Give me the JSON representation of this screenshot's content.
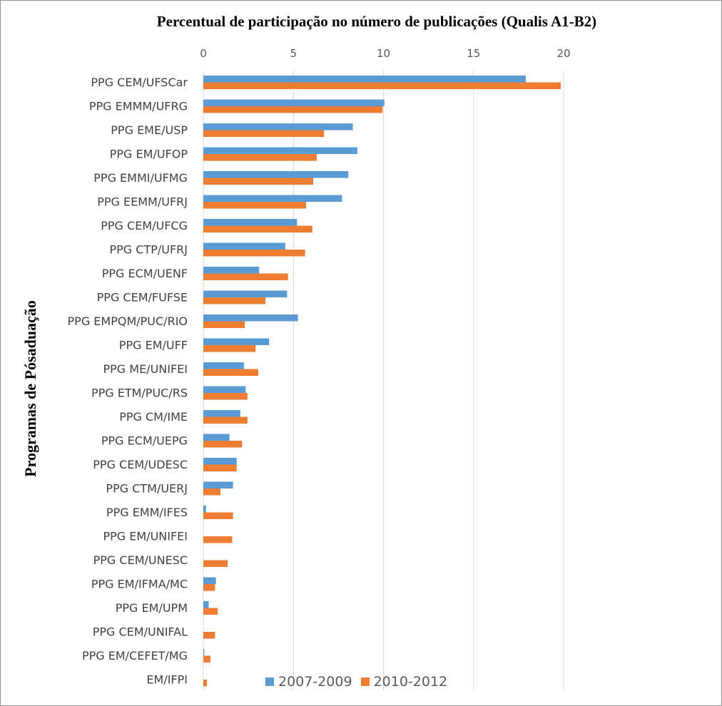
{
  "chart_data": {
    "type": "bar",
    "orientation": "horizontal",
    "title": "Percentual de participação no número de publicações (Qualis A1-B2)",
    "ylabel": "Programas de Pósaduação",
    "xlabel": "",
    "xlim": [
      0,
      20
    ],
    "xticks": [
      "0",
      "5",
      "10",
      "15",
      "20"
    ],
    "grid": true,
    "legend_position": "bottom",
    "categories": [
      "PPG CEM/UFSCar",
      "PPG EMMM/UFRG",
      "PPG EME/USP",
      "PPG EM/UFOP",
      "PPG EMMI/UFMG",
      "PPG EEMM/UFRJ",
      "PPG CEM/UFCG",
      "PPG CTP/UFRJ",
      "PPG ECM/UENF",
      "PPG CEM/FUFSE",
      "PPG EMPQM/PUC/RIO",
      "PPG EM/UFF",
      "PPG ME/UNIFEI",
      "PPG ETM/PUC/RS",
      "PPG CM/IME",
      "PPG ECM/UEPG",
      "PPG CEM/UDESC",
      "PPG CTM/UERJ",
      "PPG EMM/IFES",
      "PPG EM/UNIFEI",
      "PPG CEM/UNESC",
      "PPG EM/IFMA/MC",
      "PPG EM/UPM",
      "PPG CEM/UNIFAL",
      "PPG EM/CEFET/MG",
      "EM/IFPI"
    ],
    "series": [
      {
        "name": "2007-2009",
        "color": "#5b9bd5",
        "values": [
          17.9,
          10.05,
          8.3,
          8.55,
          8.05,
          7.7,
          5.2,
          4.55,
          3.1,
          4.65,
          5.25,
          3.65,
          2.25,
          2.35,
          2.05,
          1.45,
          1.85,
          1.65,
          0.15,
          0,
          0,
          0.7,
          0.3,
          0,
          0.05,
          0
        ]
      },
      {
        "name": "2010-2012",
        "color": "#ed7d31",
        "values": [
          19.85,
          9.95,
          6.7,
          6.3,
          6.1,
          5.7,
          6.05,
          5.65,
          4.7,
          3.45,
          2.3,
          2.9,
          3.05,
          2.45,
          2.45,
          2.15,
          1.85,
          0.95,
          1.65,
          1.6,
          1.35,
          0.65,
          0.8,
          0.65,
          0.4,
          0.2
        ]
      }
    ]
  }
}
